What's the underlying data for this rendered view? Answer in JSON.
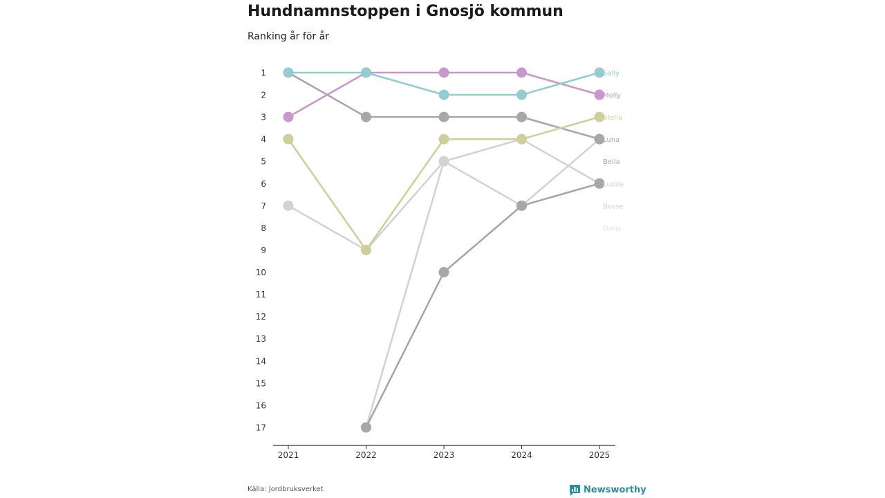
{
  "title": "Hundnamnstoppen i Gnosjö kommun",
  "subtitle": "Ranking år för år",
  "source": "Källa: Jordbruksverket",
  "brand": "Newsworthy",
  "chart_data": {
    "type": "line",
    "subtype": "bump",
    "x": [
      "2021",
      "2022",
      "2023",
      "2024",
      "2025"
    ],
    "y_ticks": [
      "1",
      "2",
      "3",
      "4",
      "5",
      "6",
      "7",
      "8",
      "9",
      "10",
      "11",
      "12",
      "13",
      "14",
      "15",
      "16",
      "17"
    ],
    "ylim": [
      1,
      17
    ],
    "y_inverted": true,
    "series": [
      {
        "name": "Sally",
        "color": "#96cbcf",
        "values": [
          1,
          1,
          2,
          2,
          1
        ]
      },
      {
        "name": "Molly",
        "color": "#c898cc",
        "values": [
          3,
          1,
          1,
          1,
          2
        ]
      },
      {
        "name": "Stella",
        "color": "#cfcf9b",
        "values": [
          4,
          9,
          4,
          4,
          3
        ]
      },
      {
        "name": "Luna",
        "color": "#a7a7a7",
        "values": [
          1,
          3,
          3,
          3,
          4
        ]
      },
      {
        "name": "Bella",
        "color": "#a7a7a7",
        "values": [
          null,
          17,
          10,
          7,
          6
        ]
      },
      {
        "name": "Ludde",
        "color": "#d3d3d3",
        "values": [
          7,
          9,
          5,
          7,
          4
        ]
      },
      {
        "name": "Bosse",
        "color": "#d3d3d3",
        "values": [
          null,
          17,
          5,
          4,
          6
        ]
      },
      {
        "name": "Doris",
        "color": "#e3e3e3",
        "values": [
          null,
          null,
          null,
          null,
          null
        ]
      }
    ]
  }
}
